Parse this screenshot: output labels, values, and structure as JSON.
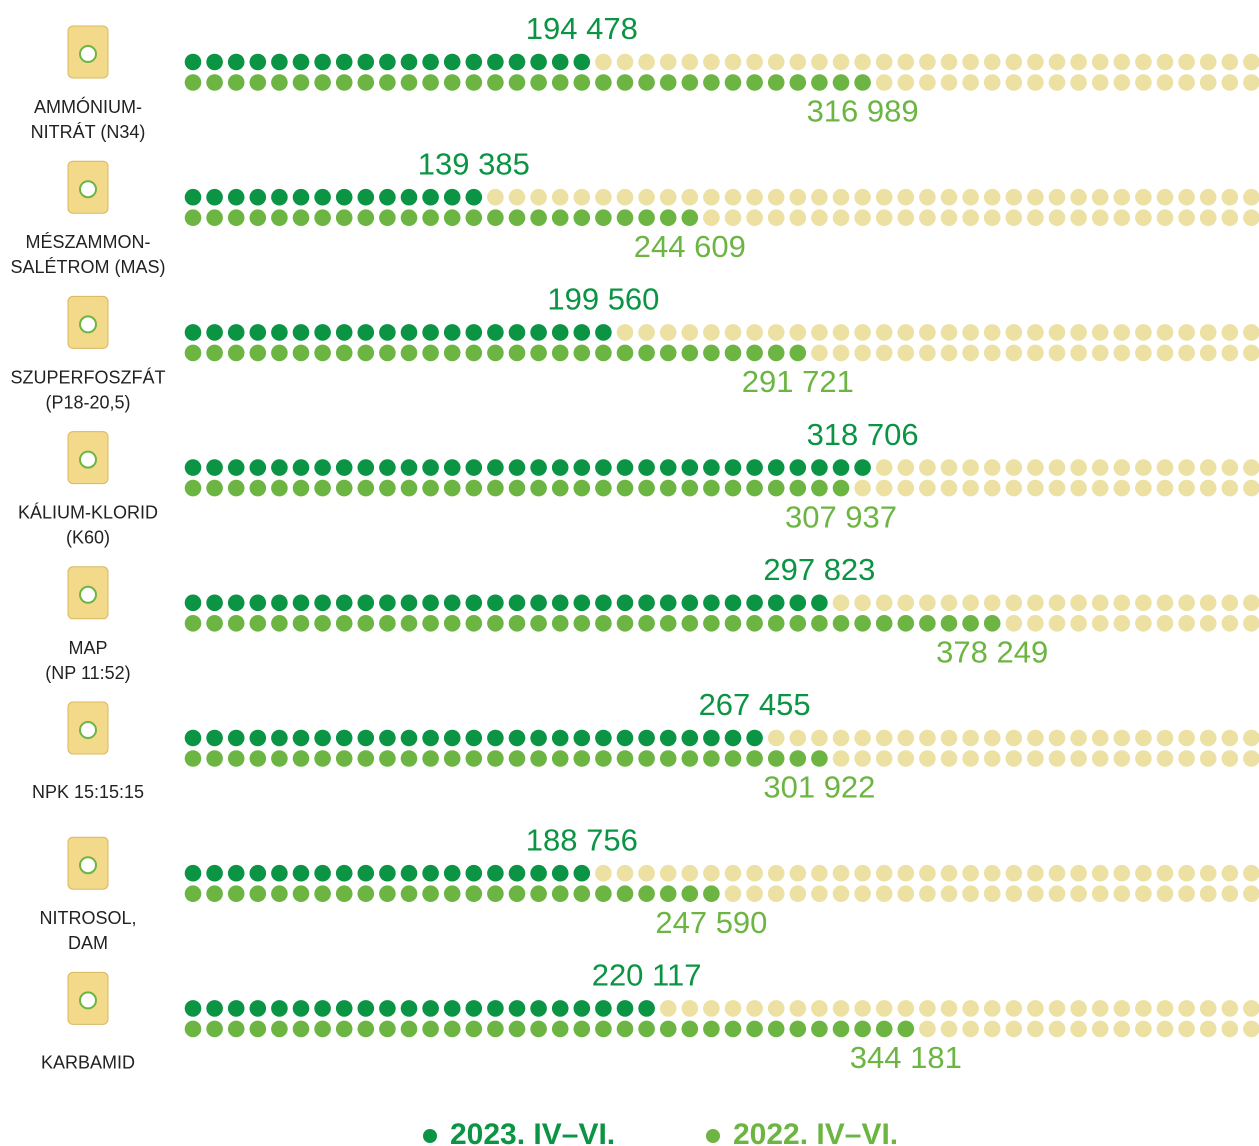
{
  "chart_data": {
    "type": "dot",
    "categories": [
      [
        "AMMÓNIUM-",
        "NITRÁT (N34)"
      ],
      [
        "MÉSZAMMON-",
        "SALÉTROM (MAS)"
      ],
      [
        "SZUPERFOSZFÁT",
        "(P18-20,5)"
      ],
      [
        "KÁLIUM-KLORID",
        "(K60)"
      ],
      [
        "MAP",
        "(NP 11:52)"
      ],
      [
        "NPK 15:15:15"
      ],
      [
        "NITROSOL,",
        "DAM"
      ],
      [
        "KARBAMID"
      ]
    ],
    "series": [
      {
        "name": "2023. IV–VI.",
        "color": "#0b9444",
        "values": [
          194478,
          139385,
          199560,
          318706,
          297823,
          267455,
          188756,
          220117
        ],
        "value_labels": [
          "194 478",
          "139 385",
          "199 560",
          "318 706",
          "297 823",
          "267 455",
          "188 756",
          "220 117"
        ]
      },
      {
        "name": "2022. IV–VI.",
        "color": "#6cb543",
        "values": [
          316989,
          244609,
          291721,
          307937,
          378249,
          301922,
          247590,
          344181
        ],
        "value_labels": [
          "316 989",
          "244 609",
          "291 721",
          "307 937",
          "378 249",
          "301 922",
          "247 590",
          "344 181"
        ]
      }
    ],
    "background_dot_color": "#ece0a2"
  }
}
